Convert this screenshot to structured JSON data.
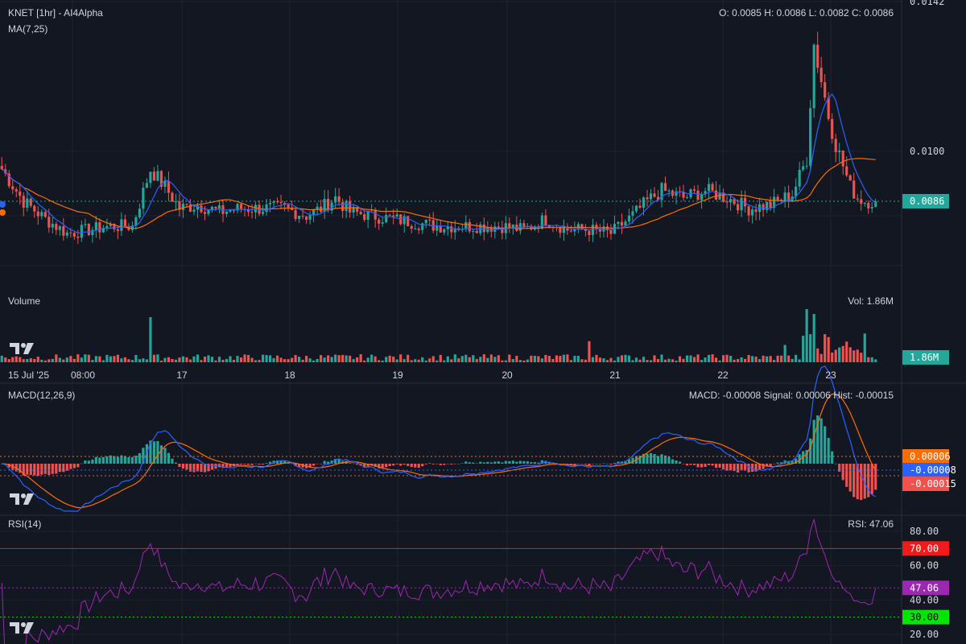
{
  "header": {
    "title": "KNET [1hr] - AI4Alpha",
    "ohlc": "O: 0.0085 H: 0.0086 L: 0.0082 C: 0.0086",
    "ma_label": "MA(7,25)"
  },
  "price_axis": {
    "ticks": [
      {
        "label": "0.0142",
        "value": 0.0142
      },
      {
        "label": "0.0100",
        "value": 0.01
      }
    ],
    "current_label": "0.0086",
    "current_value": 0.0086
  },
  "volume": {
    "label": "Volume",
    "readout": "Vol: 1.86M",
    "current_label": "1.86M"
  },
  "time_axis": {
    "labels": [
      "15 Jul '25",
      "08:00",
      "17",
      "18",
      "19",
      "20",
      "21",
      "22",
      "23"
    ]
  },
  "macd": {
    "label": "MACD(12,26,9)",
    "readout": "MACD: -0.00008 Signal: 0.00006 Hist: -0.00015",
    "badges": [
      {
        "label": "0.00006",
        "color": "#ff6d00"
      },
      {
        "label": "-0.00008",
        "color": "#2962ff"
      },
      {
        "label": "-0.00015",
        "color": "#ef5350"
      }
    ]
  },
  "rsi": {
    "label": "RSI(14)",
    "readout": "RSI: 47.06",
    "ticks": [
      {
        "label": "80.00",
        "value": 80
      },
      {
        "label": "60.00",
        "value": 60
      },
      {
        "label": "40.00",
        "value": 40
      },
      {
        "label": "20.00",
        "value": 20
      }
    ],
    "levels": [
      {
        "label": "70.00",
        "value": 70,
        "color": "#f21a1a"
      },
      {
        "label": "47.06",
        "value": 47.06,
        "color": "#9c27b0"
      },
      {
        "label": "30.00",
        "value": 30,
        "color": "#00e600"
      }
    ]
  },
  "colors": {
    "up": "#26a69a",
    "down": "#ef5350",
    "ma7": "#2962ff",
    "ma25": "#ff6d00",
    "rsi": "#9c27b0",
    "grid": "#1f2330",
    "background": "#131722"
  },
  "chart_data": {
    "type": "candlestick",
    "interval": "1hr",
    "series": [
      {
        "name": "MA(7)",
        "color": "#2962ff"
      },
      {
        "name": "MA(25)",
        "color": "#ff6d00"
      }
    ],
    "last_close": 0.0086,
    "last_volume": "1.86M",
    "x_labels": [
      "15 Jul '25",
      "08:00",
      "17",
      "18",
      "19",
      "20",
      "21",
      "22",
      "23"
    ],
    "y_ticks": [
      0.0142,
      0.01
    ],
    "anchors": [
      [
        0,
        0.0095
      ],
      [
        6,
        0.0086
      ],
      [
        12,
        0.0081
      ],
      [
        18,
        0.0077
      ],
      [
        24,
        0.0078
      ],
      [
        30,
        0.0079
      ],
      [
        36,
        0.0079
      ],
      [
        41,
        0.0095
      ],
      [
        45,
        0.009
      ],
      [
        49,
        0.0084
      ],
      [
        54,
        0.0085
      ],
      [
        60,
        0.0083
      ],
      [
        66,
        0.0084
      ],
      [
        72,
        0.0084
      ],
      [
        78,
        0.0084
      ],
      [
        84,
        0.0082
      ],
      [
        88,
        0.0084
      ],
      [
        92,
        0.0087
      ],
      [
        96,
        0.0083
      ],
      [
        102,
        0.0082
      ],
      [
        108,
        0.0081
      ],
      [
        114,
        0.008
      ],
      [
        120,
        0.0079
      ],
      [
        126,
        0.0079
      ],
      [
        132,
        0.0079
      ],
      [
        138,
        0.0079
      ],
      [
        144,
        0.0078
      ],
      [
        150,
        0.0081
      ],
      [
        156,
        0.0078
      ],
      [
        162,
        0.0078
      ],
      [
        168,
        0.0077
      ],
      [
        174,
        0.0082
      ],
      [
        178,
        0.0086
      ],
      [
        182,
        0.0089
      ],
      [
        188,
        0.0087
      ],
      [
        194,
        0.0089
      ],
      [
        200,
        0.0087
      ],
      [
        206,
        0.0084
      ],
      [
        212,
        0.0085
      ],
      [
        218,
        0.0088
      ],
      [
        222,
        0.0098
      ],
      [
        224,
        0.013
      ],
      [
        226,
        0.012
      ],
      [
        228,
        0.011
      ],
      [
        230,
        0.0102
      ],
      [
        232,
        0.0096
      ],
      [
        234,
        0.009
      ],
      [
        236,
        0.0087
      ],
      [
        238,
        0.0086
      ],
      [
        241,
        0.0086
      ]
    ]
  }
}
